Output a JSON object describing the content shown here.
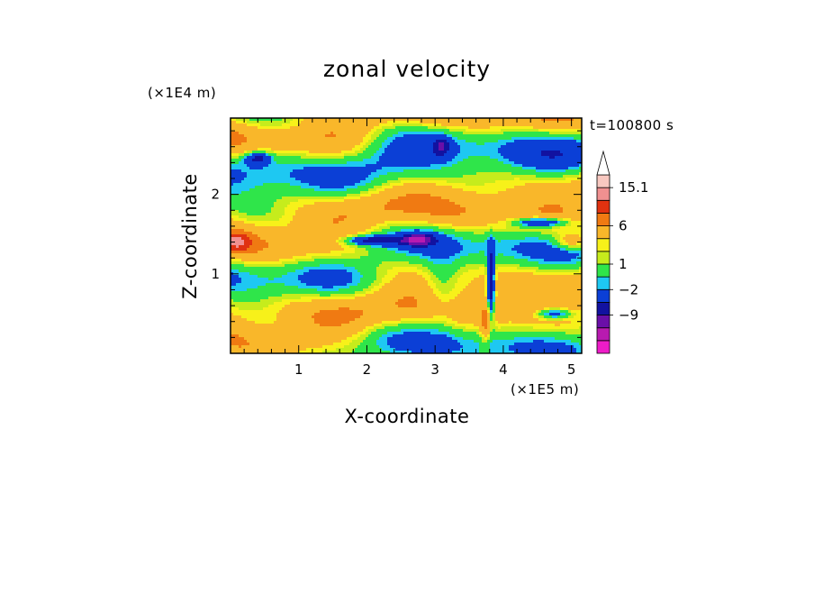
{
  "chart_data": {
    "type": "heatmap",
    "title": "zonal velocity",
    "xlabel": "X-coordinate",
    "ylabel": "Z-coordinate",
    "x_unit": "(×1E5 m)",
    "y_unit": "(×1E4 m)",
    "time_label": "t=100800 s",
    "xlim": [
      0,
      5.15
    ],
    "ylim": [
      0,
      2.96
    ],
    "x_ticks": [
      1,
      2,
      3,
      4,
      5
    ],
    "y_ticks": [
      1,
      2
    ],
    "x_tick_labels": [
      "1",
      "2",
      "3",
      "4",
      "5"
    ],
    "y_tick_labels": [
      "1",
      "2"
    ],
    "colorbar": {
      "levels": [
        -15,
        -12,
        -9,
        -6,
        -2,
        -1,
        1,
        2,
        3,
        6,
        9,
        12,
        15.1
      ],
      "labels": [
        "15.1",
        "6",
        "1",
        "−2",
        "−9"
      ],
      "label_values": [
        15.1,
        6,
        1,
        -2,
        -9
      ],
      "colors": [
        "#ee1cc8",
        "#b81ab0",
        "#6a0fa8",
        "#1212a0",
        "#0b3fd6",
        "#1ec8f2",
        "#2fe54a",
        "#c6ec1c",
        "#f7f11a",
        "#f9b72a",
        "#f07a12",
        "#e03210",
        "#f09090",
        "#f8c8c0"
      ],
      "extend_max": true,
      "extend_min": false
    },
    "grid": false,
    "legend": "right"
  }
}
